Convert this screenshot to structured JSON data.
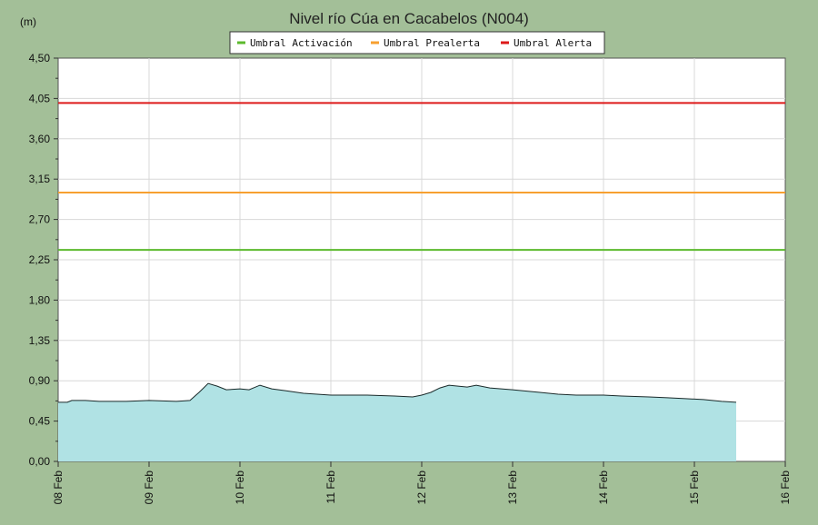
{
  "chart_data": {
    "type": "area",
    "title": "Nivel río Cúa en Cacabelos  (N004)",
    "ylabel": "(m)",
    "xlabel": "",
    "xlim": [
      "08 Feb",
      "16 Feb"
    ],
    "ylim": [
      0,
      4.5
    ],
    "y_ticks": [
      "0,00",
      "0,45",
      "0,90",
      "1,35",
      "1,80",
      "2,25",
      "2,70",
      "3,15",
      "3,60",
      "4,05",
      "4,50"
    ],
    "x_ticks": [
      "08 Feb",
      "09 Feb",
      "10 Feb",
      "11 Feb",
      "12 Feb",
      "13 Feb",
      "14 Feb",
      "15 Feb",
      "16 Feb"
    ],
    "grid": true,
    "legend_position": "top-center",
    "fill_color": "#b0e2e4",
    "line_color": "#1a2a2a",
    "thresholds": [
      {
        "name": "Umbral Activación",
        "value": 2.36,
        "color": "#5cba2e"
      },
      {
        "name": "Umbral Prealerta",
        "value": 3.0,
        "color": "#f7a030"
      },
      {
        "name": "Umbral Alerta",
        "value": 4.0,
        "color": "#dd1a1a"
      }
    ],
    "series": [
      {
        "x": [
          0,
          0.1,
          0.15,
          0.3,
          0.45,
          0.75,
          1.0,
          1.3,
          1.45,
          1.55,
          1.6,
          1.65,
          1.75,
          1.85,
          2.0,
          2.1,
          2.22,
          2.35,
          2.5,
          2.7,
          3.0,
          3.4,
          3.7,
          3.9,
          4.0,
          4.1,
          4.2,
          4.3,
          4.4,
          4.5,
          4.6,
          4.75,
          5.0,
          5.3,
          5.5,
          5.7,
          6.0,
          6.2,
          6.5,
          6.7,
          6.9,
          7.1,
          7.3,
          7.46
        ],
        "y": [
          0.66,
          0.66,
          0.68,
          0.68,
          0.67,
          0.67,
          0.68,
          0.67,
          0.68,
          0.77,
          0.82,
          0.87,
          0.84,
          0.8,
          0.81,
          0.8,
          0.85,
          0.81,
          0.79,
          0.76,
          0.74,
          0.74,
          0.73,
          0.72,
          0.74,
          0.77,
          0.82,
          0.85,
          0.84,
          0.83,
          0.85,
          0.82,
          0.8,
          0.77,
          0.75,
          0.74,
          0.74,
          0.73,
          0.72,
          0.71,
          0.7,
          0.69,
          0.67,
          0.66
        ]
      }
    ]
  }
}
